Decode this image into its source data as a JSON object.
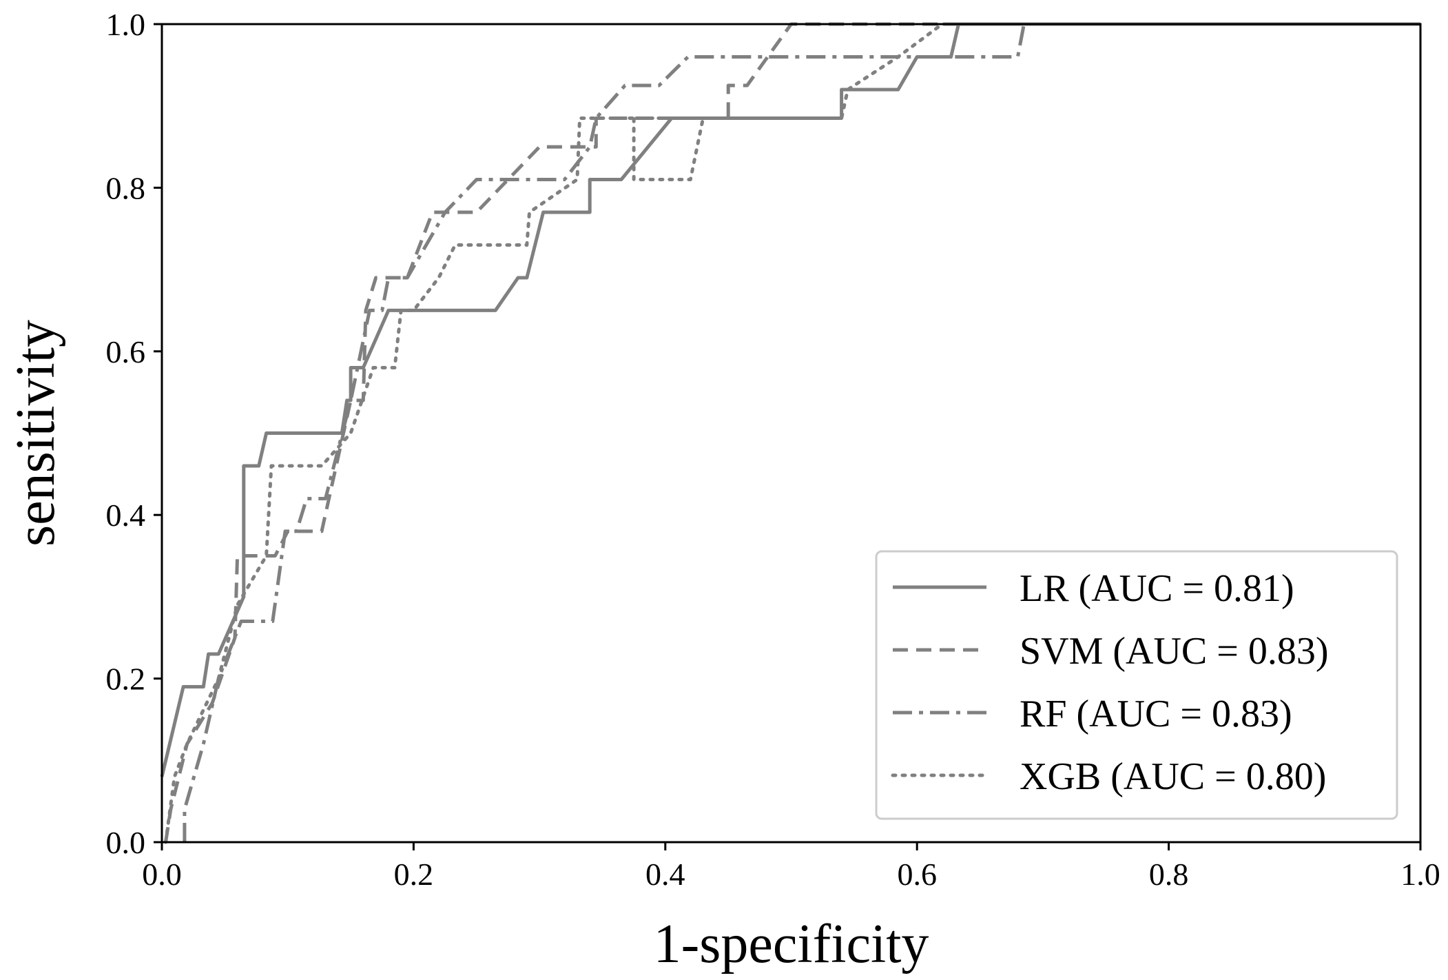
{
  "chart_data": {
    "type": "line",
    "title": "",
    "xlabel": "1-specificity",
    "ylabel": "sensitivity",
    "xlim": [
      0.0,
      1.0
    ],
    "ylim": [
      0.0,
      1.0
    ],
    "xticks": [
      "0.0",
      "0.2",
      "0.4",
      "0.6",
      "0.8",
      "1.0"
    ],
    "yticks": [
      "0.0",
      "0.2",
      "0.4",
      "0.6",
      "0.8",
      "1.0"
    ],
    "grid": false,
    "legend_position": "bottom-right",
    "line_color": "#808080",
    "series": [
      {
        "name": "LR (AUC = 0.81)",
        "style": "solid",
        "points": [
          [
            0.0,
            0.08
          ],
          [
            0.017,
            0.19
          ],
          [
            0.033,
            0.19
          ],
          [
            0.037,
            0.23
          ],
          [
            0.045,
            0.23
          ],
          [
            0.065,
            0.3
          ],
          [
            0.065,
            0.46
          ],
          [
            0.077,
            0.46
          ],
          [
            0.083,
            0.5
          ],
          [
            0.143,
            0.5
          ],
          [
            0.147,
            0.54
          ],
          [
            0.15,
            0.54
          ],
          [
            0.15,
            0.58
          ],
          [
            0.16,
            0.58
          ],
          [
            0.18,
            0.65
          ],
          [
            0.265,
            0.65
          ],
          [
            0.283,
            0.69
          ],
          [
            0.29,
            0.69
          ],
          [
            0.303,
            0.77
          ],
          [
            0.34,
            0.77
          ],
          [
            0.34,
            0.81
          ],
          [
            0.365,
            0.81
          ],
          [
            0.405,
            0.885
          ],
          [
            0.45,
            0.885
          ],
          [
            0.45,
            0.885
          ],
          [
            0.54,
            0.885
          ],
          [
            0.54,
            0.92
          ],
          [
            0.585,
            0.92
          ],
          [
            0.6,
            0.96
          ],
          [
            0.627,
            0.96
          ],
          [
            0.633,
            1.0
          ],
          [
            1.0,
            1.0
          ]
        ]
      },
      {
        "name": "SVM (AUC = 0.83)",
        "style": "dashed",
        "points": [
          [
            0.003,
            0.0
          ],
          [
            0.007,
            0.04
          ],
          [
            0.02,
            0.12
          ],
          [
            0.04,
            0.17
          ],
          [
            0.058,
            0.25
          ],
          [
            0.06,
            0.35
          ],
          [
            0.068,
            0.35
          ],
          [
            0.073,
            0.35
          ],
          [
            0.09,
            0.35
          ],
          [
            0.1,
            0.38
          ],
          [
            0.127,
            0.38
          ],
          [
            0.15,
            0.54
          ],
          [
            0.16,
            0.54
          ],
          [
            0.162,
            0.65
          ],
          [
            0.17,
            0.69
          ],
          [
            0.195,
            0.69
          ],
          [
            0.205,
            0.73
          ],
          [
            0.215,
            0.77
          ],
          [
            0.25,
            0.77
          ],
          [
            0.3,
            0.85
          ],
          [
            0.345,
            0.85
          ],
          [
            0.345,
            0.885
          ],
          [
            0.43,
            0.885
          ],
          [
            0.45,
            0.885
          ],
          [
            0.45,
            0.925
          ],
          [
            0.465,
            0.925
          ],
          [
            0.5,
            1.0
          ],
          [
            1.0,
            1.0
          ]
        ]
      },
      {
        "name": "RF (AUC = 0.83)",
        "style": "dashdot",
        "points": [
          [
            0.018,
            0.0
          ],
          [
            0.018,
            0.04
          ],
          [
            0.033,
            0.12
          ],
          [
            0.045,
            0.2
          ],
          [
            0.063,
            0.27
          ],
          [
            0.085,
            0.27
          ],
          [
            0.088,
            0.27
          ],
          [
            0.098,
            0.38
          ],
          [
            0.107,
            0.38
          ],
          [
            0.115,
            0.42
          ],
          [
            0.13,
            0.42
          ],
          [
            0.15,
            0.54
          ],
          [
            0.165,
            0.65
          ],
          [
            0.175,
            0.65
          ],
          [
            0.18,
            0.69
          ],
          [
            0.195,
            0.69
          ],
          [
            0.21,
            0.73
          ],
          [
            0.225,
            0.77
          ],
          [
            0.25,
            0.81
          ],
          [
            0.32,
            0.81
          ],
          [
            0.34,
            0.85
          ],
          [
            0.345,
            0.885
          ],
          [
            0.368,
            0.925
          ],
          [
            0.395,
            0.925
          ],
          [
            0.418,
            0.96
          ],
          [
            0.48,
            0.96
          ],
          [
            0.615,
            0.96
          ],
          [
            0.68,
            0.96
          ],
          [
            0.685,
            1.0
          ],
          [
            1.0,
            1.0
          ]
        ]
      },
      {
        "name": "XGB (AUC = 0.80)",
        "style": "dotted",
        "points": [
          [
            0.003,
            0.0
          ],
          [
            0.01,
            0.08
          ],
          [
            0.02,
            0.12
          ],
          [
            0.045,
            0.2
          ],
          [
            0.06,
            0.29
          ],
          [
            0.083,
            0.35
          ],
          [
            0.087,
            0.46
          ],
          [
            0.127,
            0.46
          ],
          [
            0.15,
            0.5
          ],
          [
            0.168,
            0.58
          ],
          [
            0.185,
            0.58
          ],
          [
            0.19,
            0.65
          ],
          [
            0.2,
            0.65
          ],
          [
            0.22,
            0.69
          ],
          [
            0.233,
            0.73
          ],
          [
            0.29,
            0.73
          ],
          [
            0.292,
            0.77
          ],
          [
            0.33,
            0.81
          ],
          [
            0.332,
            0.885
          ],
          [
            0.43,
            0.885
          ],
          [
            0.42,
            0.81
          ],
          [
            0.375,
            0.81
          ],
          [
            0.375,
            0.885
          ],
          [
            0.45,
            0.885
          ],
          [
            0.54,
            0.885
          ],
          [
            0.545,
            0.92
          ],
          [
            0.585,
            0.96
          ],
          [
            0.62,
            1.0
          ],
          [
            1.0,
            1.0
          ]
        ]
      }
    ]
  }
}
